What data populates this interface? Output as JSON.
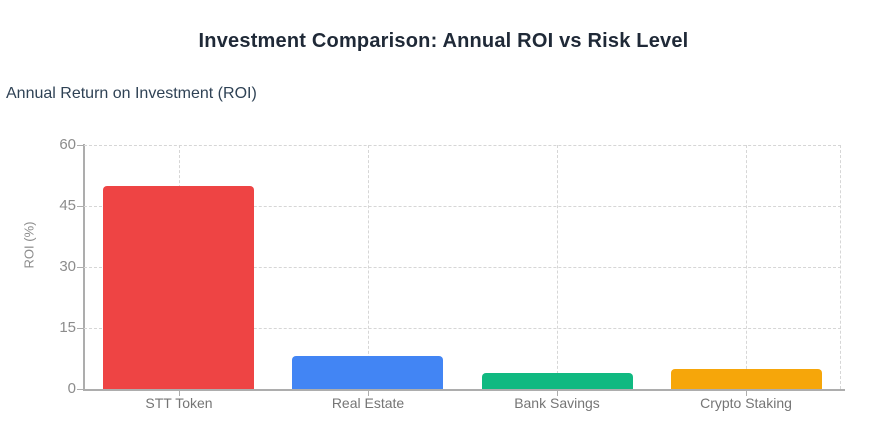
{
  "page": {
    "title": "Investment Comparison: Annual ROI vs Risk Level",
    "section_heading": "Annual Return on Investment (ROI)"
  },
  "chart_data": {
    "type": "bar",
    "title": "Investment Comparison: Annual ROI vs Risk Level",
    "subtitle": "Annual Return on Investment (ROI)",
    "categories": [
      "STT Token",
      "Real Estate",
      "Bank Savings",
      "Crypto Staking"
    ],
    "values": [
      50,
      8,
      4,
      5
    ],
    "bar_colors": [
      "#ee4444",
      "#4285f4",
      "#10b981",
      "#f6a60a"
    ],
    "xlabel": "",
    "ylabel": "ROI (%)",
    "ylim": [
      0,
      60
    ],
    "yticks": [
      0,
      15,
      30,
      45,
      60
    ],
    "grid": true,
    "legend": false,
    "title_color": "#1f2937",
    "subtitle_color": "#2f4255",
    "axis_color": "#adadad",
    "grid_color": "#d6d6d6",
    "tick_label_color": "#8c8c8c",
    "category_label_color": "#757575",
    "background_color": "#ffffff"
  }
}
